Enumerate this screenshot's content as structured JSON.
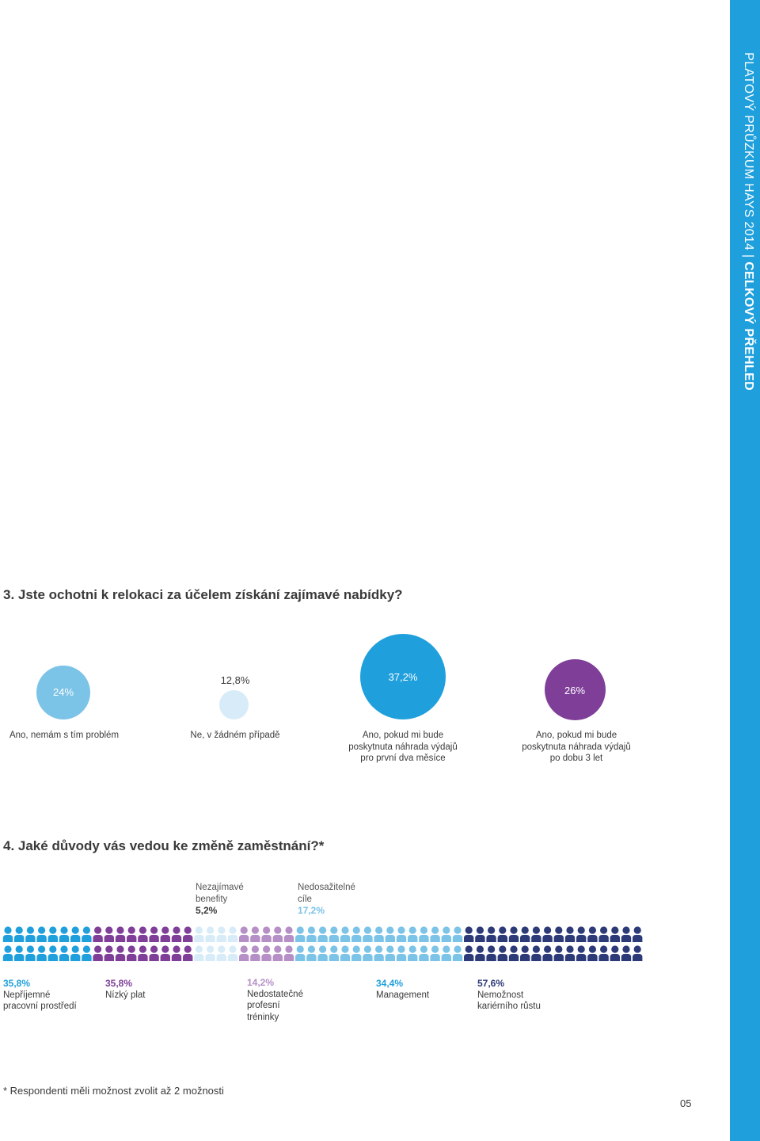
{
  "sidebar": {
    "title_light": "PLATOVÝ PRŮZKUM HAYS 2014 | ",
    "title_bold": "CELKOVÝ PŘEHLED"
  },
  "colors": {
    "sidebar": "#1fa0dc",
    "light_blue": "#7cc3e8",
    "pale_blue": "#d7ecf8",
    "mid_blue": "#1fa0dc",
    "purple": "#7f3f98",
    "lilac": "#b58fc6",
    "navy": "#2d3a78"
  },
  "q3": {
    "title": "3. Jste ochotni k relokaci za účelem získání zajímavé nabídky?",
    "answers": [
      {
        "value": "24%",
        "label": [
          "Ano, nemám s tím problém"
        ]
      },
      {
        "value": "12,8%",
        "label": [
          "Ne, v žádném případě"
        ]
      },
      {
        "value": "37,2%",
        "label": [
          "Ano, pokud mi bude",
          "poskytnuta náhrada výdajů",
          "pro první dva měsíce"
        ]
      },
      {
        "value": "26%",
        "label": [
          "Ano, pokud mi bude",
          "poskytnuta náhrada výdajů",
          "po dobu 3 let"
        ]
      }
    ]
  },
  "q4": {
    "title": "4. Jaké důvody vás vedou ke změně zaměstnání?*",
    "top_reasons": [
      {
        "lines": [
          "Nezajímavé",
          "benefity"
        ],
        "value": "5,2%"
      },
      {
        "lines": [
          "Nedosažitelné",
          "cíle"
        ],
        "value": "17,2%"
      }
    ],
    "bottom_reasons": [
      {
        "value": "35,8%",
        "lines": [
          "Nepříjemné",
          "pracovní prostředí"
        ]
      },
      {
        "value": "35,8%",
        "lines": [
          "Nízký plat"
        ]
      },
      {
        "value": "14,2%",
        "lines": [
          "Nedostatečné",
          "profesní",
          "tréninky"
        ]
      },
      {
        "value": "34,4%",
        "lines": [
          "Management"
        ]
      },
      {
        "value": "57,6%",
        "lines": [
          "Nemožnost",
          "kariérního růstu"
        ]
      }
    ]
  },
  "footnote": "* Respondenti měli možnost zvolit až 2 možnosti",
  "page_number": "05"
}
